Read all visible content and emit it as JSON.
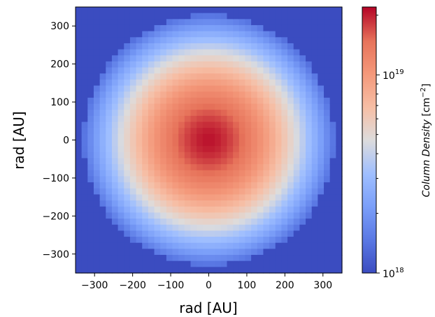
{
  "chart_data": {
    "type": "heatmap",
    "title": "",
    "xlabel": "rad [AU]",
    "ylabel": "rad [AU]",
    "xlim": [
      -350,
      350
    ],
    "ylim": [
      -350,
      350
    ],
    "grid_cells": 44,
    "x_ticks": [
      {
        "value": -300,
        "label": "−300"
      },
      {
        "value": -200,
        "label": "−200"
      },
      {
        "value": -100,
        "label": "−100"
      },
      {
        "value": 0,
        "label": "0"
      },
      {
        "value": 100,
        "label": "100"
      },
      {
        "value": 200,
        "label": "200"
      },
      {
        "value": 300,
        "label": "300"
      }
    ],
    "y_ticks": [
      {
        "value": 300,
        "label": "300"
      },
      {
        "value": 200,
        "label": "200"
      },
      {
        "value": 100,
        "label": "100"
      },
      {
        "value": 0,
        "label": "0"
      },
      {
        "value": -100,
        "label": "−100"
      },
      {
        "value": -200,
        "label": "−200"
      },
      {
        "value": -300,
        "label": "−300"
      }
    ],
    "field": {
      "description_type": "radial",
      "center": [
        0,
        0
      ],
      "outer_radius": 330,
      "peak_density": 2.1e+19,
      "edge_density": 1.4e+18,
      "background_density": 1e+18
    },
    "colorbar": {
      "label_main": "Column Density",
      "label_unit": "[cm",
      "label_exp": "−2",
      "label_close": "]",
      "scale": "log",
      "range": [
        1e+18,
        2.2e+19
      ],
      "major_ticks": [
        {
          "value": 1e+19,
          "base": "10",
          "exp": "19"
        },
        {
          "value": 1e+18,
          "base": "10",
          "exp": "18"
        }
      ],
      "minor_ticks": [
        2e+18,
        3e+18,
        4e+18,
        5e+18,
        6e+18,
        7e+18,
        8e+18,
        9e+18,
        2e+19
      ],
      "colormap": "coolwarm"
    }
  }
}
